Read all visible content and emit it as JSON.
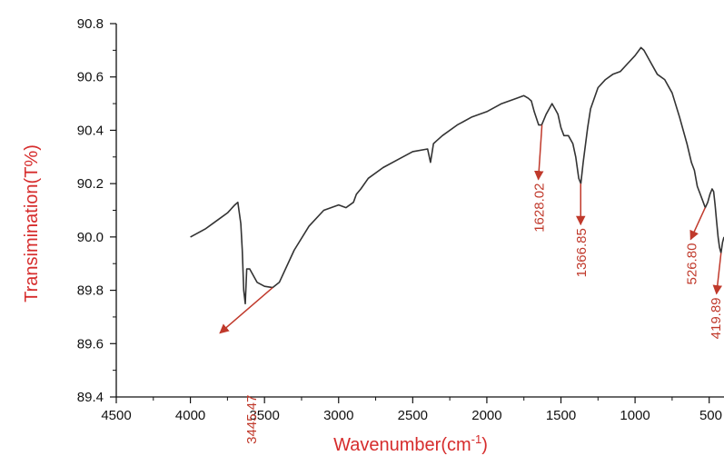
{
  "chart_data": {
    "type": "line",
    "xlabel": "Wavenumber(cm",
    "xlabel_sup": "-1",
    "xlabel_close": ")",
    "ylabel": "Transimination(T%)",
    "xlim": [
      4500,
      400
    ],
    "ylim": [
      89.4,
      90.8
    ],
    "x_ticks": [
      "4500",
      "4000",
      "3500",
      "3000",
      "2500",
      "2000",
      "1500",
      "1000",
      "500"
    ],
    "y_ticks": [
      "89.4",
      "89.6",
      "89.8",
      "90.0",
      "90.2",
      "90.4",
      "90.6",
      "90.8"
    ],
    "grid": false,
    "line_color": "#333333",
    "annotation_color": "#c0392b",
    "axis_title_color": "#d62c2c",
    "series": [
      {
        "x": [
          4000,
          3900,
          3850,
          3800,
          3750,
          3700,
          3680,
          3660,
          3650,
          3640,
          3630,
          3620,
          3600,
          3550,
          3500,
          3445,
          3400,
          3300,
          3200,
          3100,
          3000,
          2950,
          2900,
          2880,
          2850,
          2800,
          2700,
          2600,
          2500,
          2400,
          2380,
          2360,
          2340,
          2300,
          2200,
          2100,
          2000,
          1900,
          1800,
          1750,
          1720,
          1700,
          1680,
          1650,
          1630,
          1600,
          1580,
          1560,
          1540,
          1520,
          1500,
          1480,
          1450,
          1420,
          1400,
          1380,
          1366,
          1350,
          1320,
          1300,
          1250,
          1200,
          1150,
          1100,
          1050,
          1000,
          960,
          940,
          900,
          850,
          800,
          750,
          700,
          650,
          620,
          600,
          580,
          560,
          540,
          526,
          510,
          495,
          480,
          470,
          460,
          450,
          440,
          430,
          420,
          410,
          400
        ],
        "y": [
          90.0,
          90.03,
          90.05,
          90.07,
          90.09,
          90.12,
          90.13,
          90.05,
          89.95,
          89.8,
          89.75,
          89.88,
          89.88,
          89.83,
          89.815,
          89.81,
          89.83,
          89.95,
          90.04,
          90.1,
          90.12,
          90.11,
          90.13,
          90.16,
          90.18,
          90.22,
          90.26,
          90.29,
          90.32,
          90.33,
          90.28,
          90.35,
          90.36,
          90.38,
          90.42,
          90.45,
          90.47,
          90.5,
          90.52,
          90.53,
          90.52,
          90.51,
          90.47,
          90.42,
          90.42,
          90.46,
          90.48,
          90.5,
          90.48,
          90.46,
          90.41,
          90.38,
          90.38,
          90.35,
          90.3,
          90.22,
          90.2,
          90.28,
          90.41,
          90.48,
          90.56,
          90.59,
          90.61,
          90.62,
          90.65,
          90.68,
          90.71,
          90.7,
          90.66,
          90.61,
          90.59,
          90.54,
          90.45,
          90.35,
          90.28,
          90.25,
          90.19,
          90.16,
          90.13,
          90.11,
          90.13,
          90.16,
          90.18,
          90.17,
          90.12,
          90.06,
          90.0,
          89.96,
          89.94,
          89.98,
          90.0
        ]
      }
    ],
    "annotations": [
      {
        "label": "3445.47",
        "x": 3445.47,
        "y": 89.81
      },
      {
        "label": "1628.02",
        "x": 1628.02,
        "y": 90.42
      },
      {
        "label": "1366.85",
        "x": 1366.85,
        "y": 90.2
      },
      {
        "label": "526.80",
        "x": 526.8,
        "y": 90.11
      },
      {
        "label": "419.89",
        "x": 419.89,
        "y": 89.94
      }
    ]
  }
}
